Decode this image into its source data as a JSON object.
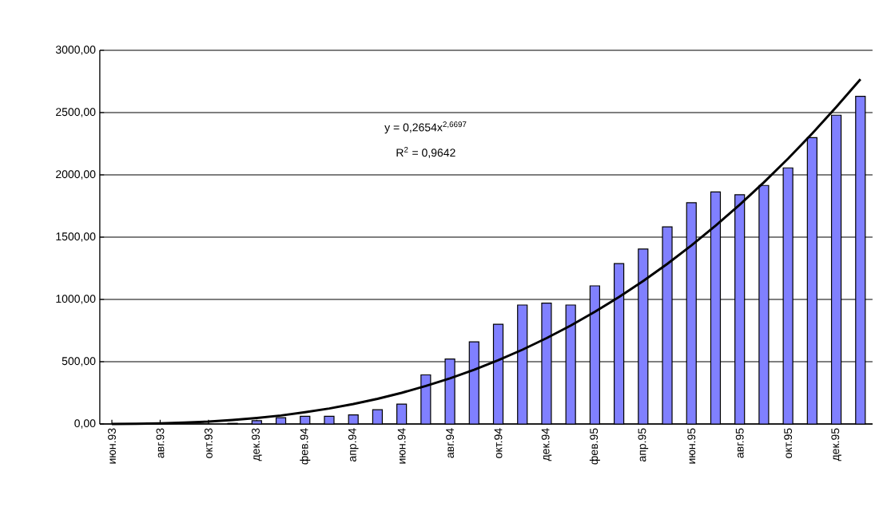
{
  "chart_data": {
    "type": "bar",
    "categories": [
      "июн.93",
      null,
      "авг.93",
      null,
      "окт.93",
      null,
      "дек.93",
      null,
      "фев.94",
      null,
      "апр.94",
      null,
      "июн.94",
      null,
      "авг.94",
      null,
      "окт.94",
      null,
      "дек.94",
      null,
      "фев.95",
      null,
      "апр.95",
      null,
      "июн.95",
      null,
      "авг.95",
      null,
      "окт.95",
      null,
      "дек.95",
      null
    ],
    "series": [
      {
        "color": "#8080ff",
        "values": [
          null,
          null,
          null,
          null,
          null,
          5,
          26,
          51,
          62,
          62,
          73,
          114,
          160,
          394,
          522,
          660,
          801,
          955,
          970,
          955,
          1109,
          1288,
          1404,
          1583,
          1776,
          1863,
          1840,
          1915,
          2056,
          2299,
          2479,
          2631
        ]
      },
      {
        "type": "line",
        "color": "#000000",
        "values": [
          0,
          2,
          5,
          11,
          19,
          32,
          48,
          68,
          94,
          124,
          160,
          202,
          250,
          305,
          366,
          435,
          512,
          596,
          689,
          790,
          900,
          1019,
          1147,
          1285,
          1433,
          1592,
          1760,
          1940,
          2130,
          2332,
          2545,
          2767
        ]
      }
    ],
    "ylim": [
      0,
      3000
    ],
    "yticks": [
      {
        "value": 0,
        "label": "0,00"
      },
      {
        "value": 500,
        "label": "500,00"
      },
      {
        "value": 1000,
        "label": "1000,00"
      },
      {
        "value": 1500,
        "label": "1500,00"
      },
      {
        "value": 2000,
        "label": "2000,00"
      },
      {
        "value": 2500,
        "label": "2500,00"
      },
      {
        "value": 3000,
        "label": "3000,00"
      }
    ],
    "grid": "y",
    "marker": "none",
    "line_style": "solid",
    "annotations": [
      "y = 0,2654x$^{2,6697}$",
      "R$^{2}$ = 0,9642"
    ]
  }
}
